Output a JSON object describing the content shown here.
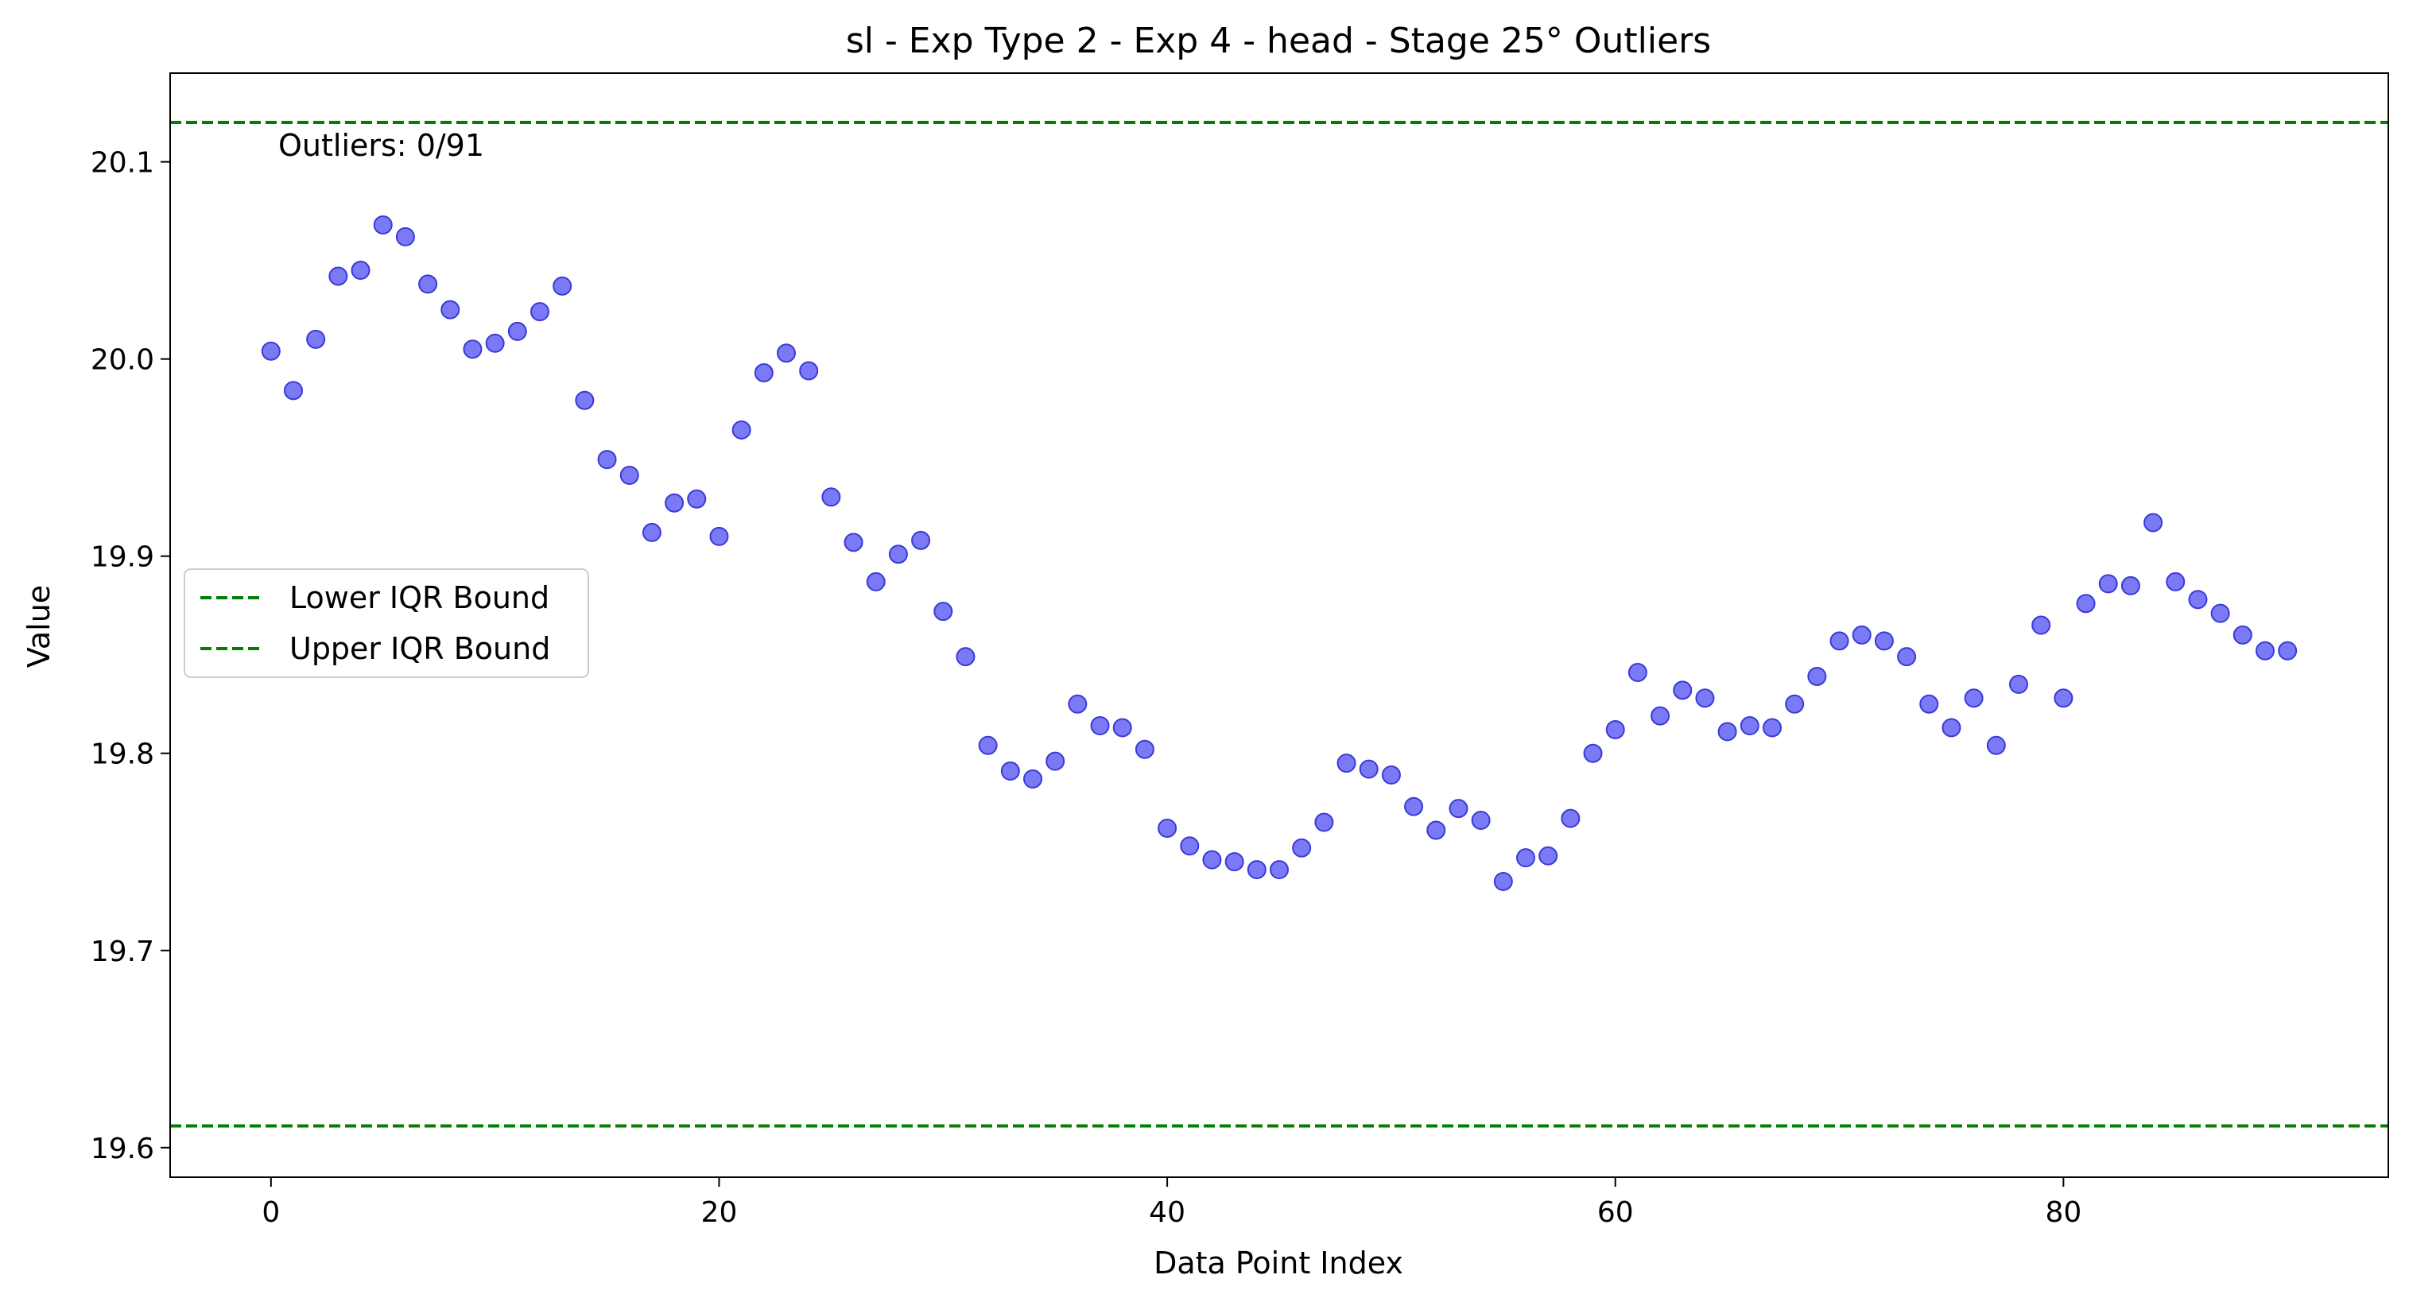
{
  "chart_data": {
    "type": "scatter",
    "title": "sl - Exp Type 2 - Exp 4 - head - Stage 25° Outliers",
    "xlabel": "Data Point Index",
    "ylabel": "Value",
    "xlim": [
      -4.5,
      94.5
    ],
    "ylim": [
      19.585,
      20.145
    ],
    "xticks": [
      0,
      20,
      40,
      60,
      80
    ],
    "yticks": [
      19.6,
      19.7,
      19.8,
      19.9,
      20.0,
      20.1
    ],
    "ytick_labels": [
      "19.6",
      "19.7",
      "19.8",
      "19.9",
      "20.0",
      "20.1"
    ],
    "lower_bound": 19.611,
    "upper_bound": 20.12,
    "annotation": "Outliers: 0/91",
    "legend": {
      "placement": "center-left",
      "entries": [
        "Lower IQR Bound",
        "Upper IQR Bound"
      ]
    },
    "colors": {
      "points": "#6b6bf5",
      "points_edge": "#3a3ad6",
      "bounds": "#008000"
    },
    "series": [
      {
        "x": [
          0,
          1,
          2,
          3,
          4,
          5,
          6,
          7,
          8,
          9,
          10,
          11,
          12,
          13,
          14,
          15,
          16,
          17,
          18,
          19,
          20,
          21,
          22,
          23,
          24,
          25,
          26,
          27,
          28,
          29,
          30,
          31,
          32,
          33,
          34,
          35,
          36,
          37,
          38,
          39,
          40,
          41,
          42,
          43,
          44,
          45,
          46,
          47,
          48,
          49,
          50,
          51,
          52,
          53,
          54,
          55,
          56,
          57,
          58,
          59,
          60,
          61,
          62,
          63,
          64,
          65,
          66,
          67,
          68,
          69,
          70,
          71,
          72,
          73,
          74,
          75,
          76,
          77,
          78,
          79,
          80,
          81,
          82,
          83,
          84,
          85,
          86,
          87,
          88,
          89,
          90
        ],
        "y": [
          20.004,
          19.984,
          20.01,
          20.042,
          20.045,
          20.068,
          20.062,
          20.038,
          20.025,
          20.005,
          20.008,
          20.014,
          20.024,
          20.037,
          19.979,
          19.949,
          19.941,
          19.912,
          19.927,
          19.929,
          19.91,
          19.964,
          19.993,
          20.003,
          19.994,
          19.93,
          19.907,
          19.887,
          19.901,
          19.908,
          19.872,
          19.849,
          19.804,
          19.791,
          19.787,
          19.796,
          19.825,
          19.814,
          19.813,
          19.802,
          19.762,
          19.753,
          19.746,
          19.745,
          19.741,
          19.741,
          19.752,
          19.765,
          19.795,
          19.792,
          19.789,
          19.773,
          19.761,
          19.772,
          19.766,
          19.735,
          19.747,
          19.748,
          19.767,
          19.8,
          19.812,
          19.841,
          19.819,
          19.832,
          19.828,
          19.811,
          19.814,
          19.813,
          19.825,
          19.839,
          19.857,
          19.86,
          19.857,
          19.849,
          19.825,
          19.813,
          19.828,
          19.804,
          19.835,
          19.865,
          19.828,
          19.876,
          19.886,
          19.885,
          19.917,
          19.887,
          19.878,
          19.871,
          19.86,
          19.852,
          19.852
        ]
      }
    ]
  }
}
